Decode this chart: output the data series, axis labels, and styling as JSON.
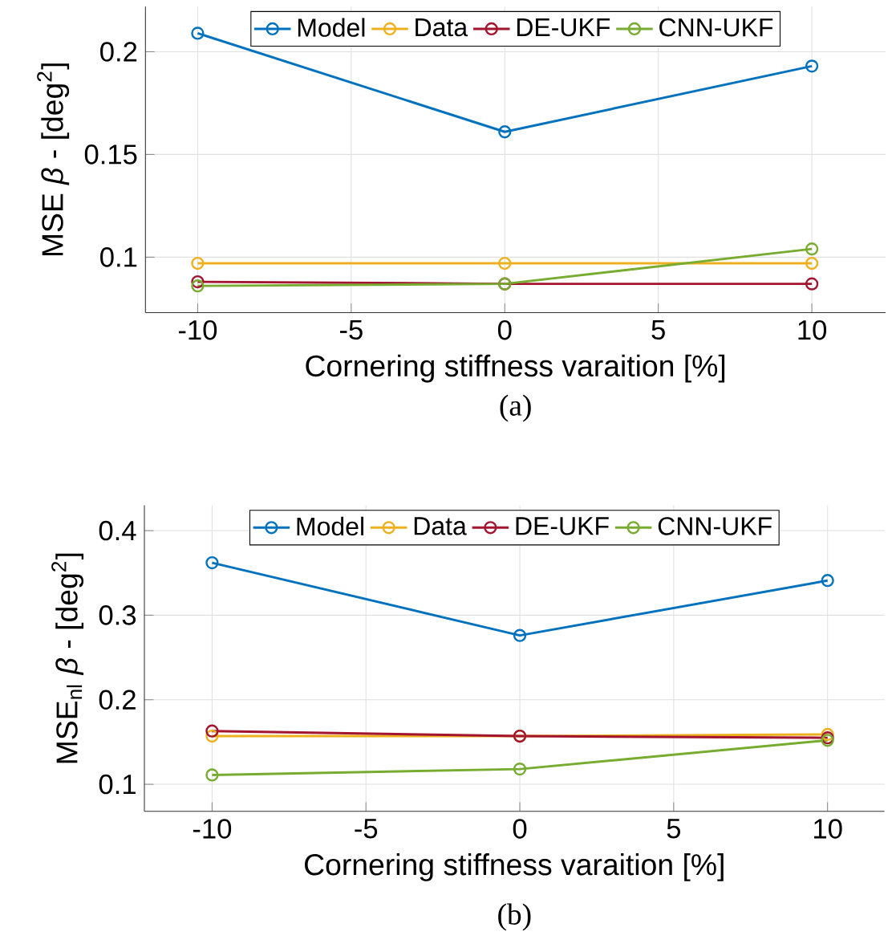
{
  "chart_data": [
    {
      "type": "line",
      "ylabel": "MSE *β* - [deg$^{2}$]",
      "xlabel": "Cornering stiffness varaition [%]",
      "annotations": [
        "(a)"
      ],
      "x": [
        -10,
        0,
        10
      ],
      "xlim": [
        -11.7,
        12.4
      ],
      "xticks": [
        -10,
        -5,
        0,
        5,
        10
      ],
      "ylim": [
        0.073,
        0.222
      ],
      "yticks": [
        0.1,
        0.15,
        0.2
      ],
      "grid": true,
      "legend": "top",
      "marker": "circle",
      "line_style": "solid",
      "series": [
        {
          "name": "Model",
          "color": "#0072bd",
          "values": [
            0.209,
            0.161,
            0.193
          ]
        },
        {
          "name": "Data",
          "color": "#edb120",
          "values": [
            0.097,
            0.097,
            0.097
          ]
        },
        {
          "name": "DE-UKF",
          "color": "#a2142f",
          "values": [
            0.088,
            0.087,
            0.087
          ]
        },
        {
          "name": "CNN-UKF",
          "color": "#77ac30",
          "values": [
            0.086,
            0.087,
            0.104
          ]
        }
      ]
    },
    {
      "type": "line",
      "ylabel": "MSE$_{nl}$ *β* - [deg$^{2}$]",
      "xlabel": "Cornering stiffness varaition [%]",
      "annotations": [
        "(b)"
      ],
      "x": [
        -10,
        0,
        10
      ],
      "xlim": [
        -12.2,
        11.85
      ],
      "xticks": [
        -10,
        -5,
        0,
        5,
        10
      ],
      "ylim": [
        0.068,
        0.43
      ],
      "yticks": [
        0.1,
        0.2,
        0.3,
        0.4
      ],
      "grid": true,
      "legend": "top",
      "marker": "circle",
      "line_style": "solid",
      "series": [
        {
          "name": "Model",
          "color": "#0072bd",
          "values": [
            0.362,
            0.276,
            0.341
          ]
        },
        {
          "name": "Data",
          "color": "#edb120",
          "values": [
            0.157,
            0.157,
            0.159
          ]
        },
        {
          "name": "DE-UKF",
          "color": "#a2142f",
          "values": [
            0.163,
            0.157,
            0.155
          ]
        },
        {
          "name": "CNN-UKF",
          "color": "#77ac30",
          "values": [
            0.111,
            0.118,
            0.152
          ]
        }
      ]
    }
  ]
}
